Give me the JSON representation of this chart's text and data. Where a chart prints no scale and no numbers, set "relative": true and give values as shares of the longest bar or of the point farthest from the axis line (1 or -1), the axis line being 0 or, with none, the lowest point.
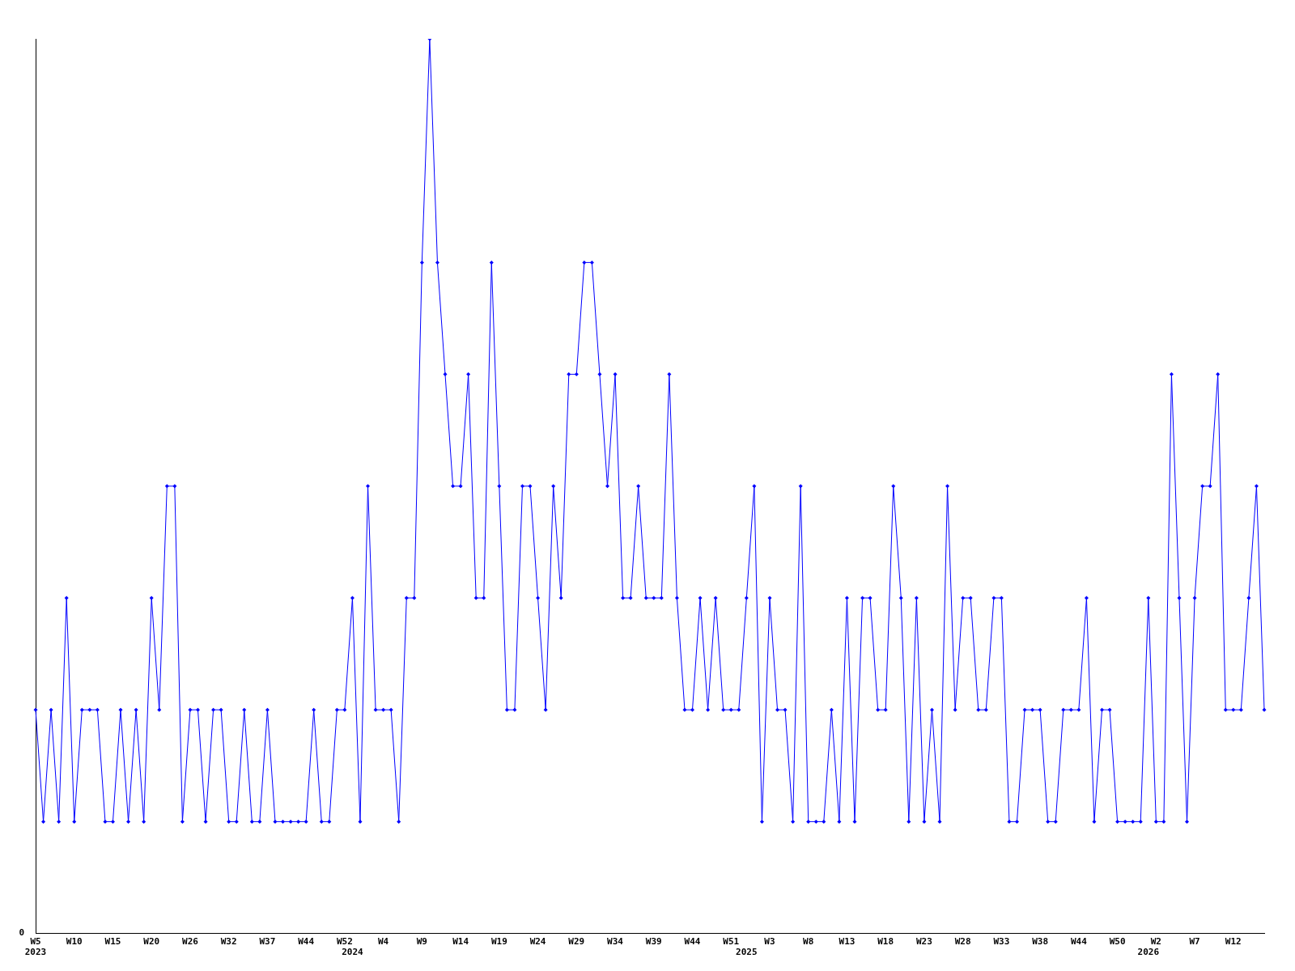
{
  "chart_data": {
    "type": "line",
    "relative": true,
    "annotations": [
      "0"
    ],
    "marker": "diamond",
    "grid": false,
    "legend": false,
    "categories": [
      "W5\n2023",
      null,
      null,
      null,
      null,
      "W10",
      null,
      null,
      null,
      null,
      "W15",
      null,
      null,
      null,
      null,
      "W20",
      null,
      null,
      null,
      null,
      "W26",
      null,
      null,
      null,
      null,
      "W32",
      null,
      null,
      null,
      null,
      "W37",
      null,
      null,
      null,
      null,
      "W44",
      null,
      null,
      null,
      null,
      "W52",
      "\n2024",
      null,
      null,
      null,
      "W4",
      null,
      null,
      null,
      null,
      "W9",
      null,
      null,
      null,
      null,
      "W14",
      null,
      null,
      null,
      null,
      "W19",
      null,
      null,
      null,
      null,
      "W24",
      null,
      null,
      null,
      null,
      "W29",
      null,
      null,
      null,
      null,
      "W34",
      null,
      null,
      null,
      null,
      "W39",
      null,
      null,
      null,
      null,
      "W44",
      null,
      null,
      null,
      null,
      "W51",
      null,
      "\n2025",
      null,
      null,
      "W3",
      null,
      null,
      null,
      null,
      "W8",
      null,
      null,
      null,
      null,
      "W13",
      null,
      null,
      null,
      null,
      "W18",
      null,
      null,
      null,
      null,
      "W23",
      null,
      null,
      null,
      null,
      "W28",
      null,
      null,
      null,
      null,
      "W33",
      null,
      null,
      null,
      null,
      "W38",
      null,
      null,
      null,
      null,
      "W44",
      null,
      null,
      null,
      null,
      "W50",
      null,
      null,
      null,
      "\n2026",
      "W2",
      null,
      null,
      null,
      null,
      "W7",
      null,
      null,
      null,
      null,
      "W12",
      null,
      null,
      null,
      null
    ],
    "series": [
      {
        "color": "#0000ff",
        "values": [
          0.25,
          0.125,
          0.25,
          0.125,
          0.375,
          0.125,
          0.25,
          0.25,
          0.25,
          0.125,
          0.125,
          0.25,
          0.125,
          0.25,
          0.125,
          0.375,
          0.25,
          0.5,
          0.5,
          0.125,
          0.25,
          0.25,
          0.125,
          0.25,
          0.25,
          0.125,
          0.125,
          0.25,
          0.125,
          0.125,
          0.25,
          0.125,
          0.125,
          0.125,
          0.125,
          0.125,
          0.25,
          0.125,
          0.125,
          0.25,
          0.25,
          0.375,
          0.125,
          0.5,
          0.25,
          0.25,
          0.25,
          0.125,
          0.375,
          0.375,
          0.75,
          1,
          0.75,
          0.625,
          0.5,
          0.5,
          0.625,
          0.375,
          0.375,
          0.75,
          0.5,
          0.25,
          0.25,
          0.5,
          0.5,
          0.375,
          0.25,
          0.5,
          0.375,
          0.625,
          0.625,
          0.75,
          0.75,
          0.625,
          0.5,
          0.625,
          0.375,
          0.375,
          0.5,
          0.375,
          0.375,
          0.375,
          0.625,
          0.375,
          0.25,
          0.25,
          0.375,
          0.25,
          0.375,
          0.25,
          0.25,
          0.25,
          0.375,
          0.5,
          0.125,
          0.375,
          0.25,
          0.25,
          0.125,
          0.5,
          0.125,
          0.125,
          0.125,
          0.25,
          0.125,
          0.375,
          0.125,
          0.375,
          0.375,
          0.25,
          0.25,
          0.5,
          0.375,
          0.125,
          0.375,
          0.125,
          0.25,
          0.125,
          0.5,
          0.25,
          0.375,
          0.375,
          0.25,
          0.25,
          0.375,
          0.375,
          0.125,
          0.125,
          0.25,
          0.25,
          0.25,
          0.125,
          0.125,
          0.25,
          0.25,
          0.25,
          0.375,
          0.125,
          0.25,
          0.25,
          0.125,
          0.125,
          0.125,
          0.125,
          0.375,
          0.125,
          0.125,
          0.625,
          0.375,
          0.125,
          0.375,
          0.5,
          0.5,
          0.625,
          0.25,
          0.25,
          0.25,
          0.375,
          0.5,
          0.25
        ]
      }
    ]
  }
}
